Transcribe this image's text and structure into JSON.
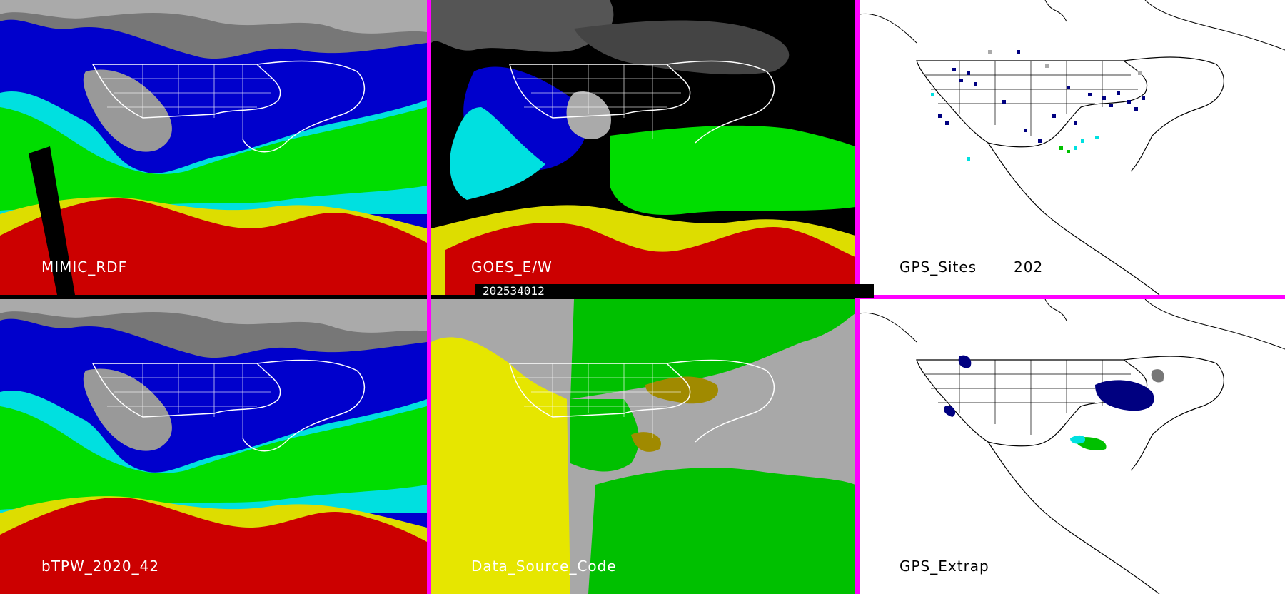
{
  "panels": [
    {
      "label": "MIMIC_RDF"
    },
    {
      "label": "GOES_E/W"
    },
    {
      "label": "GPS_Sites"
    },
    {
      "label": "bTPW_2020_42"
    },
    {
      "label": "Data_Source_Code"
    },
    {
      "label": "GPS_Extrap"
    }
  ],
  "gps_sites_count": "202",
  "timestamp": "202534012",
  "colors": {
    "separator": "#ff00ff",
    "very_dry": "#000080",
    "dry": "#0000cc",
    "moist": "#00e0e0",
    "wet": "#00dd00",
    "very_wet": "#dddd00",
    "saturated": "#cc0000",
    "source_goes": "#00c000",
    "source_model": "#e6e600",
    "source_none": "#a8a8a8",
    "source_mixed": "#a08a00"
  },
  "icons": [
    "map-outline-icon"
  ]
}
